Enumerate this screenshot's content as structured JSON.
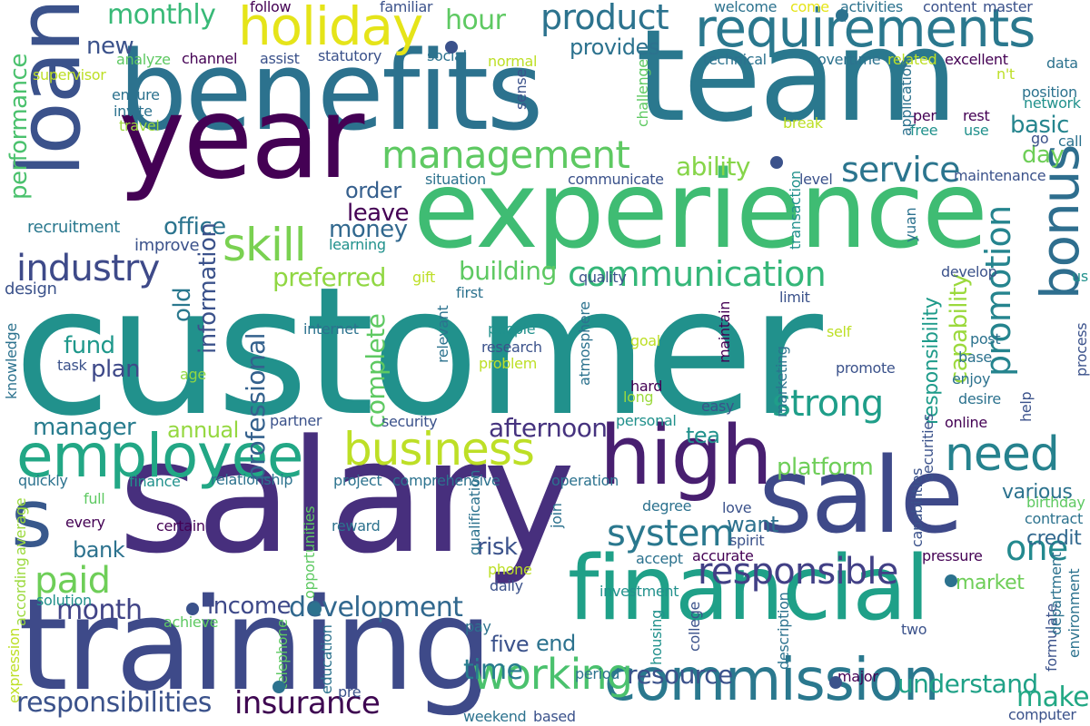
{
  "words": [
    {
      "id": "customer",
      "text": "customer",
      "color": "#21918c"
    },
    {
      "id": "salary",
      "text": "salary",
      "color": "#472f7d"
    },
    {
      "id": "benefits",
      "text": "benefits",
      "color": "#2c728e"
    },
    {
      "id": "team",
      "text": "team",
      "color": "#2a788e"
    },
    {
      "id": "experience",
      "text": "experience",
      "color": "#3fbc73"
    },
    {
      "id": "year",
      "text": "year",
      "color": "#440154"
    },
    {
      "id": "loan",
      "text": "loan",
      "color": "#3b528b"
    },
    {
      "id": "training",
      "text": "training",
      "color": "#3e4a89"
    },
    {
      "id": "financial",
      "text": "financial",
      "color": "#1fa088"
    },
    {
      "id": "sale",
      "text": "sale",
      "color": "#3e4989"
    },
    {
      "id": "high",
      "text": "high",
      "color": "#481f70"
    },
    {
      "id": "employee",
      "text": "employee",
      "color": "#22a785"
    },
    {
      "id": "commission",
      "text": "commission",
      "color": "#2a788e"
    },
    {
      "id": "s",
      "text": "s",
      "color": "#38588c"
    },
    {
      "id": "requirements",
      "text": "requirements",
      "color": "#2a788e"
    },
    {
      "id": "holiday",
      "text": "holiday",
      "color": "#e5e419"
    },
    {
      "id": "management",
      "text": "management",
      "color": "#5ec962"
    },
    {
      "id": "skill",
      "text": "skill",
      "color": "#7ad151"
    },
    {
      "id": "business",
      "text": "business",
      "color": "#bddf26"
    },
    {
      "id": "communication",
      "text": "communication",
      "color": "#35b779"
    },
    {
      "id": "bonus",
      "text": "bonus",
      "color": "#2e6e8e"
    },
    {
      "id": "industry",
      "text": "industry",
      "color": "#3e4a89"
    },
    {
      "id": "service",
      "text": "service",
      "color": "#2b758e"
    },
    {
      "id": "strong",
      "text": "strong",
      "color": "#1f9e89"
    },
    {
      "id": "need",
      "text": "need",
      "color": "#26828e"
    },
    {
      "id": "product",
      "text": "product",
      "color": "#2c738e"
    },
    {
      "id": "responsible",
      "text": "responsible",
      "color": "#424086"
    },
    {
      "id": "development",
      "text": "development",
      "color": "#31688e"
    },
    {
      "id": "system",
      "text": "system",
      "color": "#2a788e"
    },
    {
      "id": "working",
      "text": "working",
      "color": "#4ac16d"
    },
    {
      "id": "insurance",
      "text": "insurance",
      "color": "#3e0751"
    },
    {
      "id": "resource",
      "text": "resource",
      "color": "#3b528b"
    },
    {
      "id": "responsibilities",
      "text": "responsibilities",
      "color": "#3b528b"
    },
    {
      "id": "month",
      "text": "month",
      "color": "#414487"
    },
    {
      "id": "paid",
      "text": "paid",
      "color": "#6ece58"
    },
    {
      "id": "one",
      "text": "one",
      "color": "#23898e"
    },
    {
      "id": "promotion",
      "text": "promotion",
      "color": "#25848e"
    },
    {
      "id": "monthly",
      "text": "monthly",
      "color": "#38b977"
    },
    {
      "id": "ability",
      "text": "ability",
      "color": "#86d549"
    },
    {
      "id": "building",
      "text": "building",
      "color": "#5ec962"
    },
    {
      "id": "preferred",
      "text": "preferred",
      "color": "#90d743"
    },
    {
      "id": "platform",
      "text": "platform",
      "color": "#6ece58"
    },
    {
      "id": "afternoon",
      "text": "afternoon",
      "color": "#46337f"
    },
    {
      "id": "understand",
      "text": "understand",
      "color": "#1fa187"
    },
    {
      "id": "make",
      "text": "make",
      "color": "#22a884"
    },
    {
      "id": "time",
      "text": "time",
      "color": "#287c8e"
    },
    {
      "id": "professional",
      "text": "professional",
      "color": "#34618d"
    },
    {
      "id": "performance",
      "text": "performance",
      "color": "#4ac16d"
    },
    {
      "id": "fund",
      "text": "fund",
      "color": "#1f988b"
    },
    {
      "id": "plan",
      "text": "plan",
      "color": "#3e4989"
    },
    {
      "id": "old",
      "text": "old",
      "color": "#2a788e"
    },
    {
      "id": "hour",
      "text": "hour",
      "color": "#5ec962"
    },
    {
      "id": "new",
      "text": "new",
      "color": "#3b528b"
    },
    {
      "id": "office",
      "text": "office",
      "color": "#2b748e"
    },
    {
      "id": "leave",
      "text": "leave",
      "color": "#440154"
    },
    {
      "id": "money",
      "text": "money",
      "color": "#31688e"
    },
    {
      "id": "order",
      "text": "order",
      "color": "#355f8d"
    },
    {
      "id": "basic",
      "text": "basic",
      "color": "#25858e"
    },
    {
      "id": "day",
      "text": "day",
      "color": "#6ece58"
    },
    {
      "id": "provides",
      "text": "provides",
      "color": "#2c728e"
    },
    {
      "id": "complete",
      "text": "complete",
      "color": "#5ec962"
    },
    {
      "id": "capability",
      "text": "capability",
      "color": "#9bd93c"
    },
    {
      "id": "responsibility",
      "text": "responsibility",
      "color": "#1e9b8a"
    },
    {
      "id": "information",
      "text": "information",
      "color": "#3b528b"
    },
    {
      "id": "manager",
      "text": "manager",
      "color": "#287c8e"
    },
    {
      "id": "annual",
      "text": "annual",
      "color": "#95d840"
    },
    {
      "id": "bank",
      "text": "bank",
      "color": "#2c728e"
    },
    {
      "id": "risk",
      "text": "risk",
      "color": "#3b528b"
    },
    {
      "id": "income",
      "text": "income",
      "color": "#3e4989"
    },
    {
      "id": "five",
      "text": "five",
      "color": "#3b528b"
    },
    {
      "id": "end",
      "text": "end",
      "color": "#2c728e"
    },
    {
      "id": "want",
      "text": "want",
      "color": "#2d708e"
    },
    {
      "id": "various",
      "text": "various",
      "color": "#2c728e"
    },
    {
      "id": "credit",
      "text": "credit",
      "color": "#31688e"
    },
    {
      "id": "tea",
      "text": "tea",
      "color": "#21918c"
    },
    {
      "id": "market",
      "text": "market",
      "color": "#6ece58"
    },
    {
      "id": "recruitment",
      "text": "recruitment",
      "color": "#2a788e"
    },
    {
      "id": "improve",
      "text": "improve",
      "color": "#3b528b"
    },
    {
      "id": "design",
      "text": "design",
      "color": "#3b528b"
    },
    {
      "id": "knowledge",
      "text": "knowledge",
      "color": "#2c728e"
    },
    {
      "id": "task",
      "text": "task",
      "color": "#3b528b"
    },
    {
      "id": "age",
      "text": "age",
      "color": "#90d743"
    },
    {
      "id": "supervisor",
      "text": "supervisor",
      "color": "#bddf26"
    },
    {
      "id": "analyze",
      "text": "analyze",
      "color": "#5ec962"
    },
    {
      "id": "ensure",
      "text": "ensure",
      "color": "#2c728e"
    },
    {
      "id": "invite",
      "text": "invite",
      "color": "#2c728e"
    },
    {
      "id": "travel",
      "text": "travel",
      "color": "#9bd93c"
    },
    {
      "id": "channel",
      "text": "channel",
      "color": "#440154"
    },
    {
      "id": "assist",
      "text": "assist",
      "color": "#3b528b"
    },
    {
      "id": "statutory",
      "text": "statutory",
      "color": "#3b528b"
    },
    {
      "id": "social",
      "text": "social",
      "color": "#2c728e"
    },
    {
      "id": "normal",
      "text": "normal",
      "color": "#bddf26"
    },
    {
      "id": "follow",
      "text": "follow",
      "color": "#440154"
    },
    {
      "id": "familiar",
      "text": "familiar",
      "color": "#3b528b"
    },
    {
      "id": "welcome",
      "text": "welcome",
      "color": "#2c728e"
    },
    {
      "id": "come",
      "text": "come",
      "color": "#e5e419"
    },
    {
      "id": "activities",
      "text": "activities",
      "color": "#2c728e"
    },
    {
      "id": "content",
      "text": "content",
      "color": "#3b528b"
    },
    {
      "id": "master",
      "text": "master",
      "color": "#3b528b"
    },
    {
      "id": "technical",
      "text": "technical",
      "color": "#2c728e"
    },
    {
      "id": "overtime",
      "text": "overtime",
      "color": "#2c728e"
    },
    {
      "id": "related",
      "text": "related",
      "color": "#bddf26"
    },
    {
      "id": "excellent",
      "text": "excellent",
      "color": "#440154"
    },
    {
      "id": "data",
      "text": "data",
      "color": "#2c728e"
    },
    {
      "id": "nt",
      "text": "n't",
      "color": "#bddf26"
    },
    {
      "id": "position",
      "text": "position",
      "color": "#2c728e"
    },
    {
      "id": "network",
      "text": "network",
      "color": "#21918c"
    },
    {
      "id": "per",
      "text": "per",
      "color": "#440154"
    },
    {
      "id": "rest",
      "text": "rest",
      "color": "#440154"
    },
    {
      "id": "free",
      "text": "free",
      "color": "#21918c"
    },
    {
      "id": "use",
      "text": "use",
      "color": "#21918c"
    },
    {
      "id": "go",
      "text": "go",
      "color": "#3b528b"
    },
    {
      "id": "call",
      "text": "call",
      "color": "#2c728e"
    },
    {
      "id": "maintenance",
      "text": "maintenance",
      "color": "#3b528b"
    },
    {
      "id": "level",
      "text": "level",
      "color": "#3b528b"
    },
    {
      "id": "communicate",
      "text": "communicate",
      "color": "#3b528b"
    },
    {
      "id": "situation",
      "text": "situation",
      "color": "#2c728e"
    },
    {
      "id": "break",
      "text": "break",
      "color": "#bddf26"
    },
    {
      "id": "challenge",
      "text": "challenge",
      "color": "#5ec962"
    },
    {
      "id": "sense",
      "text": "sense",
      "color": "#3b528b"
    },
    {
      "id": "application",
      "text": "application",
      "color": "#2c728e"
    },
    {
      "id": "transaction",
      "text": "transaction",
      "color": "#21918c"
    },
    {
      "id": "yuan",
      "text": "yuan",
      "color": "#2c728e"
    },
    {
      "id": "develop",
      "text": "develop",
      "color": "#3b528b"
    },
    {
      "id": "us",
      "text": "us",
      "color": "#21918c"
    },
    {
      "id": "limit",
      "text": "limit",
      "color": "#3b528b"
    },
    {
      "id": "quality",
      "text": "quality",
      "color": "#3b528b"
    },
    {
      "id": "first",
      "text": "first",
      "color": "#2c728e"
    },
    {
      "id": "gift",
      "text": "gift",
      "color": "#bddf26"
    },
    {
      "id": "learning",
      "text": "learning",
      "color": "#21918c"
    },
    {
      "id": "internet",
      "text": "internet",
      "color": "#2c728e"
    },
    {
      "id": "relevant",
      "text": "relevant",
      "color": "#2c728e"
    },
    {
      "id": "people",
      "text": "people",
      "color": "#21918c"
    },
    {
      "id": "research",
      "text": "research",
      "color": "#3b528b"
    },
    {
      "id": "problem",
      "text": "problem",
      "color": "#bddf26"
    },
    {
      "id": "atmosphere",
      "text": "atmosphere",
      "color": "#2c728e"
    },
    {
      "id": "goal",
      "text": "goal",
      "color": "#bddf26"
    },
    {
      "id": "long",
      "text": "long",
      "color": "#9bd93c"
    },
    {
      "id": "hard",
      "text": "hard",
      "color": "#440154"
    },
    {
      "id": "maintain",
      "text": "maintain",
      "color": "#440154"
    },
    {
      "id": "marketing",
      "text": "marketing",
      "color": "#2c728e"
    },
    {
      "id": "easy",
      "text": "easy",
      "color": "#3b528b"
    },
    {
      "id": "self",
      "text": "self",
      "color": "#bddf26"
    },
    {
      "id": "promote",
      "text": "promote",
      "color": "#3b528b"
    },
    {
      "id": "post",
      "text": "post",
      "color": "#2c728e"
    },
    {
      "id": "base",
      "text": "base",
      "color": "#2c728e"
    },
    {
      "id": "enjoy",
      "text": "enjoy",
      "color": "#2c728e"
    },
    {
      "id": "desire",
      "text": "desire",
      "color": "#2c728e"
    },
    {
      "id": "help",
      "text": "help",
      "color": "#3b528b"
    },
    {
      "id": "process",
      "text": "process",
      "color": "#3b528b"
    },
    {
      "id": "online",
      "text": "online",
      "color": "#440154"
    },
    {
      "id": "personal",
      "text": "personal",
      "color": "#21918c"
    },
    {
      "id": "security",
      "text": "security",
      "color": "#3b528b"
    },
    {
      "id": "partner",
      "text": "partner",
      "color": "#3b528b"
    },
    {
      "id": "securities",
      "text": "securities",
      "color": "#3b528b"
    },
    {
      "id": "capabilities",
      "text": "capabilities",
      "color": "#3b528b"
    },
    {
      "id": "birthday",
      "text": "birthday",
      "color": "#5ec962"
    },
    {
      "id": "contract",
      "text": "contract",
      "color": "#2c728e"
    },
    {
      "id": "quickly",
      "text": "quickly",
      "color": "#2c728e"
    },
    {
      "id": "finance",
      "text": "finance",
      "color": "#21918c"
    },
    {
      "id": "relationship",
      "text": "relationship",
      "color": "#2c728e"
    },
    {
      "id": "project",
      "text": "project",
      "color": "#2c728e"
    },
    {
      "id": "comprehensive",
      "text": "comprehensive",
      "color": "#2c728e"
    },
    {
      "id": "operation",
      "text": "operation",
      "color": "#2c728e"
    },
    {
      "id": "degree",
      "text": "degree",
      "color": "#2c728e"
    },
    {
      "id": "love",
      "text": "love",
      "color": "#3b528b"
    },
    {
      "id": "spirit",
      "text": "spirit",
      "color": "#3b528b"
    },
    {
      "id": "accept",
      "text": "accept",
      "color": "#2c728e"
    },
    {
      "id": "accurate",
      "text": "accurate",
      "color": "#440154"
    },
    {
      "id": "pressure",
      "text": "pressure",
      "color": "#440154"
    },
    {
      "id": "computer",
      "text": "computer",
      "color": "#3b528b"
    },
    {
      "id": "full",
      "text": "full",
      "color": "#5ec962"
    },
    {
      "id": "every",
      "text": "every",
      "color": "#440154"
    },
    {
      "id": "certain",
      "text": "certain",
      "color": "#440154"
    },
    {
      "id": "average",
      "text": "average",
      "color": "#9bd93c"
    },
    {
      "id": "according",
      "text": "according",
      "color": "#9bd93c"
    },
    {
      "id": "expression",
      "text": "expression",
      "color": "#bddf26"
    },
    {
      "id": "solution",
      "text": "solution",
      "color": "#21918c"
    },
    {
      "id": "achieve",
      "text": "achieve",
      "color": "#5ec962"
    },
    {
      "id": "opportunities",
      "text": "opportunities",
      "color": "#5ec962"
    },
    {
      "id": "telephone",
      "text": "telephone",
      "color": "#5ec962"
    },
    {
      "id": "education",
      "text": "education",
      "color": "#2c728e"
    },
    {
      "id": "reward",
      "text": "reward",
      "color": "#2c728e"
    },
    {
      "id": "pre",
      "text": "pre",
      "color": "#3b528b"
    },
    {
      "id": "qualification",
      "text": "qualification",
      "color": "#2c728e"
    },
    {
      "id": "join",
      "text": "join",
      "color": "#2c728e"
    },
    {
      "id": "phone",
      "text": "phone",
      "color": "#bddf26"
    },
    {
      "id": "daily",
      "text": "daily",
      "color": "#3b528b"
    },
    {
      "id": "pay",
      "text": "pay",
      "color": "#2c728e"
    },
    {
      "id": "investment",
      "text": "investment",
      "color": "#21918c"
    },
    {
      "id": "housing",
      "text": "housing",
      "color": "#21918c"
    },
    {
      "id": "college",
      "text": "college",
      "color": "#3b528b"
    },
    {
      "id": "description",
      "text": "description",
      "color": "#2c728e"
    },
    {
      "id": "period",
      "text": "period",
      "color": "#2c728e"
    },
    {
      "id": "major",
      "text": "major",
      "color": "#440154"
    },
    {
      "id": "weekend",
      "text": "weekend",
      "color": "#2c728e"
    },
    {
      "id": "based",
      "text": "based",
      "color": "#3b528b"
    },
    {
      "id": "formulate",
      "text": "formulate",
      "color": "#3b528b"
    },
    {
      "id": "two",
      "text": "two",
      "color": "#3b528b"
    },
    {
      "id": "department",
      "text": "department",
      "color": "#2c728e"
    },
    {
      "id": "environment",
      "text": "environment",
      "color": "#2c728e"
    }
  ]
}
